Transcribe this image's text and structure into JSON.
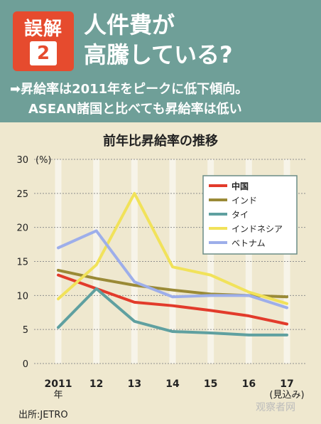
{
  "header": {
    "badge_top": "誤解",
    "badge_num": "2",
    "headline_line1": "人件費が",
    "headline_line2": "高騰している?",
    "sub_line1": "➡昇給率は2011年をピークに低下傾向。",
    "sub_line2": "ASEAN諸国と比べても昇給率は低い"
  },
  "chart_data": {
    "type": "line",
    "title": "前年比昇給率の推移",
    "ylabel": "(%)",
    "ylim": [
      0,
      30
    ],
    "yticks": [
      "0",
      "5",
      "10",
      "15",
      "20",
      "25",
      "30"
    ],
    "x": [
      "2011",
      "12",
      "13",
      "14",
      "15",
      "16",
      "17"
    ],
    "x_first_suffix": "年",
    "x_last_suffix": "(見込み)",
    "legend": "top-right",
    "series": [
      {
        "name": "中国",
        "color": "#e23b2b",
        "values": [
          13.0,
          11.0,
          9.0,
          8.5,
          7.8,
          7.0,
          5.8
        ]
      },
      {
        "name": "インド",
        "color": "#9a8a36",
        "values": [
          13.7,
          12.5,
          11.5,
          10.8,
          10.2,
          10.0,
          9.8
        ]
      },
      {
        "name": "タイ",
        "color": "#5fa0a0",
        "values": [
          5.3,
          11.0,
          6.2,
          4.7,
          4.5,
          4.2,
          4.2
        ]
      },
      {
        "name": "インドネシア",
        "color": "#f1e25a",
        "values": [
          9.5,
          14.5,
          25.0,
          14.2,
          13.0,
          10.5,
          8.8
        ]
      },
      {
        "name": "ベトナム",
        "color": "#9daeea",
        "values": [
          17.0,
          19.5,
          12.0,
          9.8,
          10.0,
          10.0,
          8.2
        ]
      }
    ]
  },
  "footer": {
    "source": "出所:JETRO",
    "watermark": "观察者网"
  }
}
